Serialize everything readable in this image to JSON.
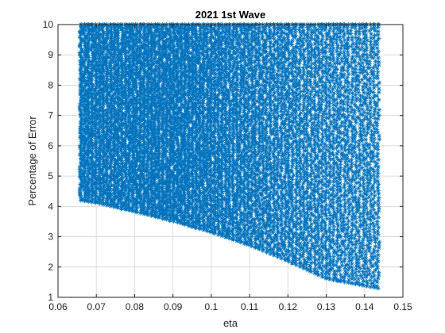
{
  "chart_data": {
    "type": "scatter",
    "title": "2021 1st Wave",
    "xlabel": "eta",
    "ylabel": "Percentage of Error",
    "xlim": [
      0.06,
      0.15
    ],
    "ylim": [
      1,
      10
    ],
    "xticks": [
      "0.06",
      "0.07",
      "0.08",
      "0.09",
      "0.1",
      "0.11",
      "0.12",
      "0.13",
      "0.14",
      "0.15"
    ],
    "yticks": [
      "1",
      "2",
      "3",
      "4",
      "5",
      "6",
      "7",
      "8",
      "9",
      "10"
    ],
    "grid": true,
    "marker": "*",
    "series_color": "#0072BD",
    "region": {
      "x_min": 0.066,
      "x_max": 0.1435,
      "y_max": 10.0,
      "lower_boundary": [
        {
          "x": 0.066,
          "y": 4.2
        },
        {
          "x": 0.07,
          "y": 4.12
        },
        {
          "x": 0.08,
          "y": 3.83
        },
        {
          "x": 0.09,
          "y": 3.52
        },
        {
          "x": 0.1,
          "y": 3.15
        },
        {
          "x": 0.11,
          "y": 2.72
        },
        {
          "x": 0.12,
          "y": 2.2
        },
        {
          "x": 0.13,
          "y": 1.62
        },
        {
          "x": 0.1435,
          "y": 1.3
        }
      ]
    }
  }
}
